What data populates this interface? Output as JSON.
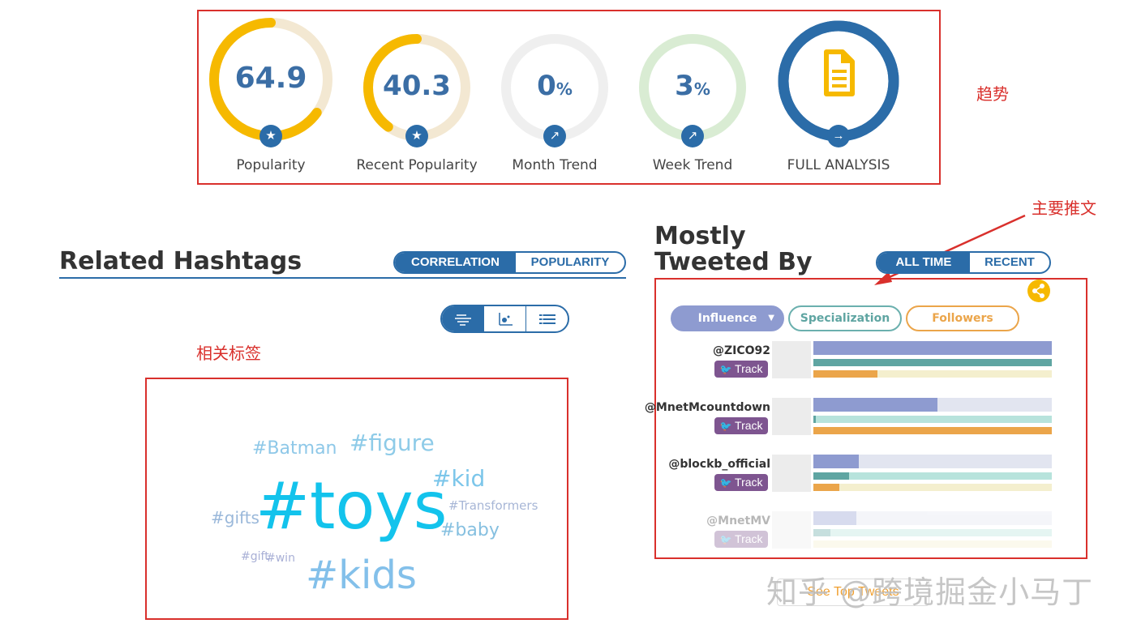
{
  "metrics": [
    {
      "value": "64.9",
      "unit": "",
      "label": "Popularity",
      "progress": 0.65,
      "ring_color": "#f6b900",
      "track_color": "#f3e8d2",
      "icon": "star-icon"
    },
    {
      "value": "40.3",
      "unit": "",
      "label": "Recent Popularity",
      "progress": 0.4,
      "ring_color": "#f6b900",
      "track_color": "#f3e8d2",
      "icon": "star-icon"
    },
    {
      "value": "0",
      "unit": "%",
      "label": "Month Trend",
      "progress": 0.0,
      "ring_color": "#efefef",
      "track_color": "#efefef",
      "icon": "trend-icon"
    },
    {
      "value": "3",
      "unit": "%",
      "label": "Week Trend",
      "progress": 0.0,
      "ring_color": "#d9ecd3",
      "track_color": "#d9ecd3",
      "icon": "trend-icon"
    },
    {
      "value": "",
      "unit": "",
      "label": "FULL ANALYSIS",
      "progress": 1.0,
      "ring_color": "#2b6ca8",
      "track_color": "#2b6ca8",
      "icon": "document-icon"
    }
  ],
  "annotations": {
    "trend": "趋势",
    "main_tweets": "主要推文",
    "related_tags": "相关标签"
  },
  "related": {
    "title": "Related Hashtags",
    "toggle": [
      "CORRELATION",
      "POPULARITY"
    ],
    "views": [
      "cloud-view-icon",
      "scatter-view-icon",
      "list-view-icon"
    ],
    "tags": [
      {
        "text": "#Batman",
        "color": "#8ec8e8"
      },
      {
        "text": "#figure",
        "color": "#8ecbe8"
      },
      {
        "text": "#kid",
        "color": "#7cc6ea"
      },
      {
        "text": "#toys",
        "color": "#13c3ec"
      },
      {
        "text": "#Transformers",
        "color": "#a7b6d6"
      },
      {
        "text": "#gifts",
        "color": "#9ab8da"
      },
      {
        "text": "#baby",
        "color": "#86c0e0"
      },
      {
        "text": "#gift",
        "color": "#a9b0d6"
      },
      {
        "text": "#win",
        "color": "#a9b0d6"
      },
      {
        "text": "#kids",
        "color": "#83c0ea"
      }
    ]
  },
  "tweeted": {
    "title_line1": "Mostly",
    "title_line2": "Tweeted By",
    "toggle": [
      "ALL TIME",
      "RECENT"
    ],
    "filters": [
      "Influence",
      "Specialization",
      "Followers"
    ],
    "track_label": "Track",
    "users": [
      {
        "name": "@ZICO92",
        "influence": 1.0,
        "specialization": 1.0,
        "followers": 0.27
      },
      {
        "name": "@MnetMcountdown",
        "influence": 0.52,
        "specialization": 0.01,
        "followers": 1.0
      },
      {
        "name": "@blockb_official",
        "influence": 0.19,
        "specialization": 0.15,
        "followers": 0.11
      },
      {
        "name": "@MnetMV",
        "influence": 0.18,
        "specialization": 0.07,
        "followers": 0.0
      }
    ],
    "see_top": "See Top Tweets"
  },
  "watermark": "知乎 @跨境掘金小马丁",
  "colors": {
    "accent": "#2b6ca8",
    "gold": "#f6b900",
    "annotation": "#d9302c",
    "track": "#7e5590"
  }
}
